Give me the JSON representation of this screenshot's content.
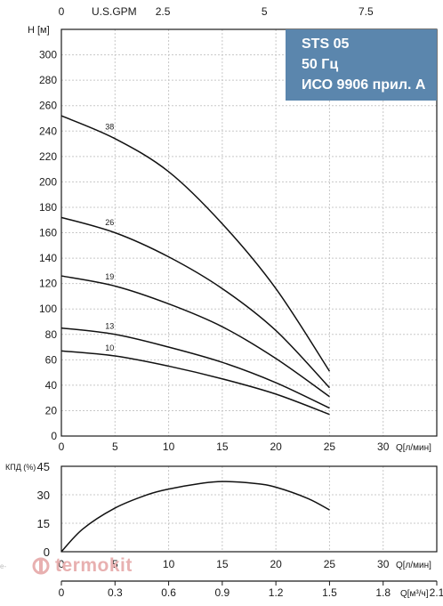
{
  "info_box": {
    "lines": [
      "STS 05",
      "50 Гц",
      "ИСО 9906 прил. А"
    ],
    "background": "#5b86ad"
  },
  "watermark": {
    "text": "termokit",
    "side_text": "e-",
    "color": "#e8b0b0"
  },
  "chart_data": [
    {
      "type": "line",
      "top_axis": {
        "label": "U.S.GPM",
        "ticks": [
          "0",
          "2.5",
          "5",
          "7.5"
        ],
        "values": [
          0,
          2.5,
          5,
          7.5
        ]
      },
      "ylabel": "H [м]",
      "xlabel": "Q[л/мин]",
      "xlim": [
        0,
        35
      ],
      "ylim": [
        0,
        320
      ],
      "x_ticks": [
        0,
        5,
        10,
        15,
        20,
        25,
        30
      ],
      "y_ticks": [
        0,
        20,
        40,
        60,
        80,
        100,
        120,
        140,
        160,
        180,
        200,
        220,
        240,
        260,
        280,
        300
      ],
      "series": [
        {
          "name": "38",
          "label_at_x": 4,
          "x": [
            0,
            5,
            10,
            15,
            20,
            25
          ],
          "y": [
            252,
            234,
            208,
            167,
            116,
            51
          ]
        },
        {
          "name": "26",
          "label_at_x": 4,
          "x": [
            0,
            5,
            10,
            15,
            20,
            25
          ],
          "y": [
            172,
            160,
            141,
            116,
            83,
            38
          ]
        },
        {
          "name": "19",
          "label_at_x": 4,
          "x": [
            0,
            5,
            10,
            15,
            20,
            25
          ],
          "y": [
            126,
            118,
            104,
            86,
            61,
            31
          ]
        },
        {
          "name": "13",
          "label_at_x": 4,
          "x": [
            0,
            5,
            10,
            15,
            20,
            25
          ],
          "y": [
            85,
            80,
            70,
            58,
            42,
            22
          ]
        },
        {
          "name": "10",
          "label_at_x": 4,
          "x": [
            0,
            5,
            10,
            15,
            20,
            25
          ],
          "y": [
            67,
            63,
            55,
            45,
            33,
            17
          ]
        }
      ],
      "grid": true
    },
    {
      "type": "line",
      "ylabel": "КПД (%)",
      "xlabel": "Q[л/мин]",
      "xlabel2": "Q[м³/ч]",
      "xlim": [
        0,
        35
      ],
      "ylim": [
        0,
        45
      ],
      "x_ticks": [
        0,
        5,
        10,
        15,
        20,
        25,
        30
      ],
      "y_ticks": [
        0,
        15,
        30,
        45
      ],
      "x2_ticks": [
        "0",
        "0.3",
        "0.6",
        "0.9",
        "1.2",
        "1.5",
        "1.8",
        "2.1"
      ],
      "x2_values": [
        0,
        0.3,
        0.6,
        0.9,
        1.2,
        1.5,
        1.8,
        2.1
      ],
      "series": [
        {
          "x": [
            0,
            2,
            5,
            8,
            10,
            13,
            15,
            18,
            20,
            23,
            25
          ],
          "y": [
            0,
            12,
            23,
            30,
            33,
            36,
            37,
            36,
            34,
            28,
            22
          ]
        }
      ],
      "grid": true
    }
  ]
}
